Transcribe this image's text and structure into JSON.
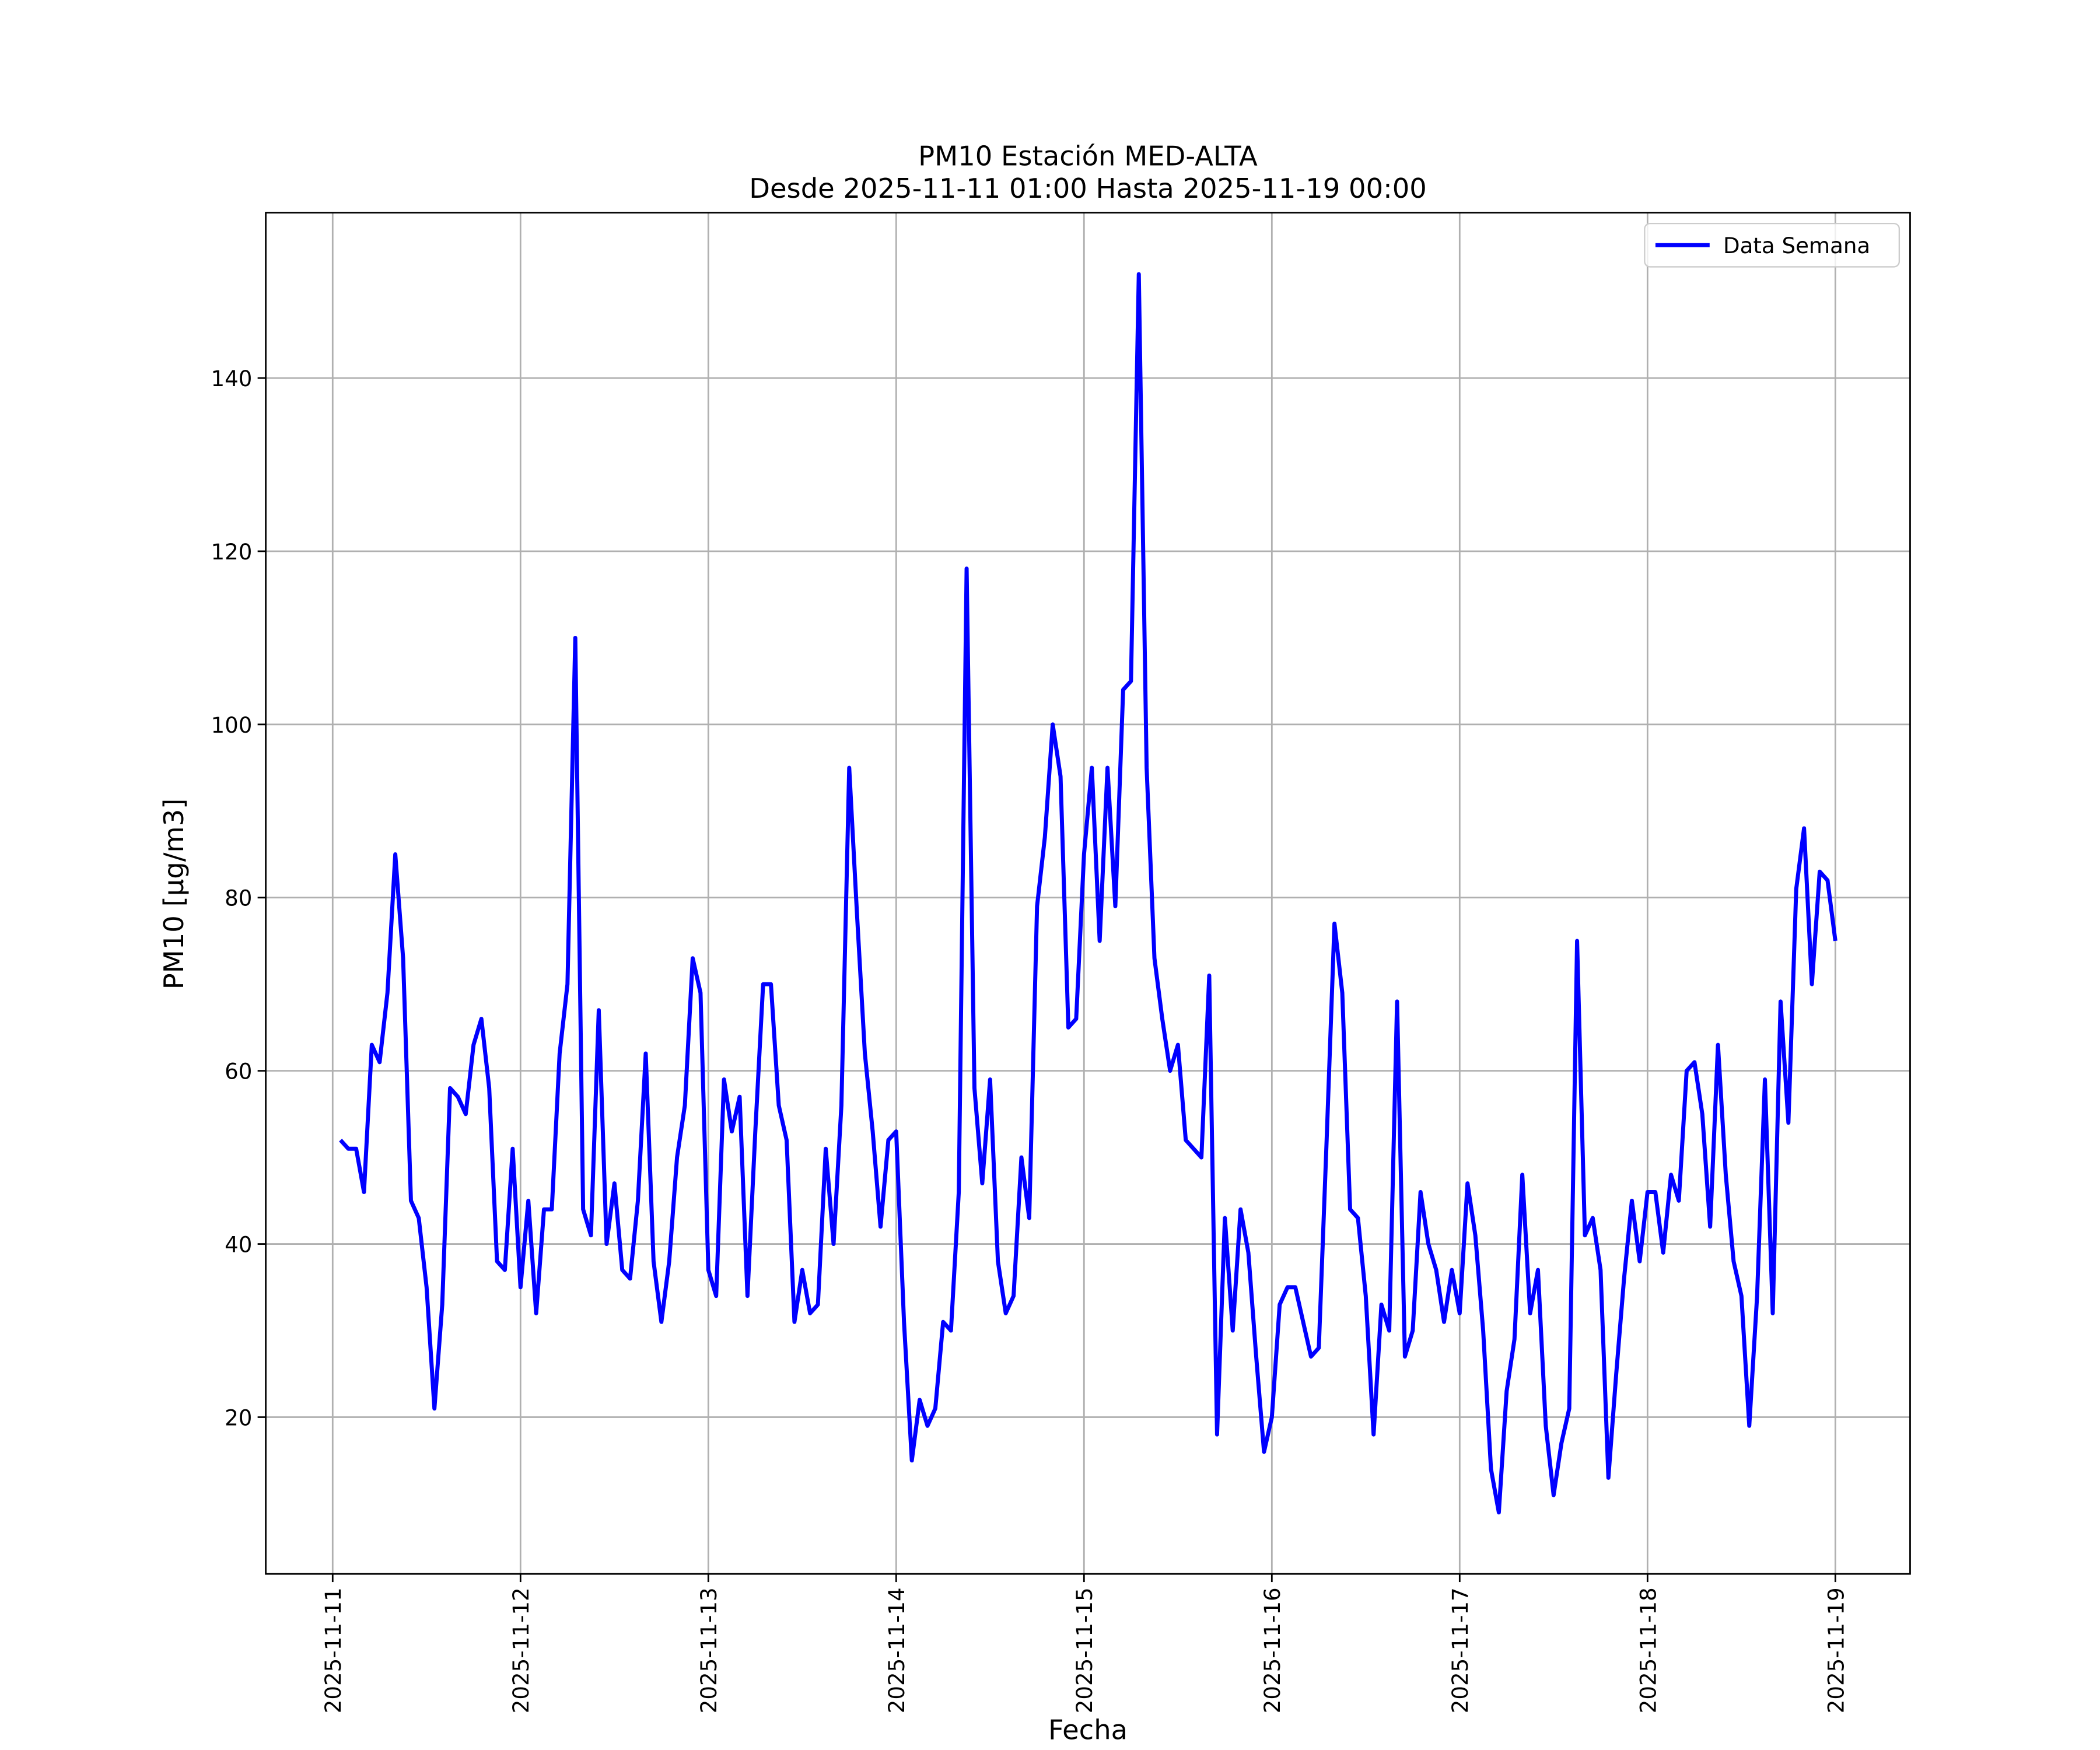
{
  "chart_data": {
    "type": "line",
    "title": "PM10 Estación MED-ALTA",
    "subtitle": "Desde 2025-11-11 01:00 Hasta 2025-11-19 00:00",
    "xlabel": "Fecha",
    "ylabel": "PM10 [μg/m3]",
    "x": [
      "2025-11-11 01:00",
      "2025-11-11 02:00",
      "2025-11-11 03:00",
      "2025-11-11 04:00",
      "2025-11-11 05:00",
      "2025-11-11 06:00",
      "2025-11-11 07:00",
      "2025-11-11 08:00",
      "2025-11-11 09:00",
      "2025-11-11 10:00",
      "2025-11-11 11:00",
      "2025-11-11 12:00",
      "2025-11-11 13:00",
      "2025-11-11 14:00",
      "2025-11-11 15:00",
      "2025-11-11 16:00",
      "2025-11-11 17:00",
      "2025-11-11 18:00",
      "2025-11-11 19:00",
      "2025-11-11 20:00",
      "2025-11-11 21:00",
      "2025-11-11 22:00",
      "2025-11-11 23:00",
      "2025-11-12 00:00",
      "2025-11-12 01:00",
      "2025-11-12 02:00",
      "2025-11-12 03:00",
      "2025-11-12 04:00",
      "2025-11-12 05:00",
      "2025-11-12 06:00",
      "2025-11-12 07:00",
      "2025-11-12 08:00",
      "2025-11-12 09:00",
      "2025-11-12 10:00",
      "2025-11-12 11:00",
      "2025-11-12 12:00",
      "2025-11-12 13:00",
      "2025-11-12 14:00",
      "2025-11-12 15:00",
      "2025-11-12 16:00",
      "2025-11-12 17:00",
      "2025-11-12 18:00",
      "2025-11-12 19:00",
      "2025-11-12 20:00",
      "2025-11-12 21:00",
      "2025-11-12 22:00",
      "2025-11-12 23:00",
      "2025-11-13 00:00",
      "2025-11-13 01:00",
      "2025-11-13 02:00",
      "2025-11-13 03:00",
      "2025-11-13 04:00",
      "2025-11-13 05:00",
      "2025-11-13 06:00",
      "2025-11-13 07:00",
      "2025-11-13 08:00",
      "2025-11-13 09:00",
      "2025-11-13 10:00",
      "2025-11-13 11:00",
      "2025-11-13 12:00",
      "2025-11-13 13:00",
      "2025-11-13 14:00",
      "2025-11-13 15:00",
      "2025-11-13 16:00",
      "2025-11-13 17:00",
      "2025-11-13 18:00",
      "2025-11-13 19:00",
      "2025-11-13 20:00",
      "2025-11-13 21:00",
      "2025-11-13 22:00",
      "2025-11-13 23:00",
      "2025-11-14 00:00",
      "2025-11-14 01:00",
      "2025-11-14 02:00",
      "2025-11-14 03:00",
      "2025-11-14 04:00",
      "2025-11-14 05:00",
      "2025-11-14 06:00",
      "2025-11-14 07:00",
      "2025-11-14 08:00",
      "2025-11-14 09:00",
      "2025-11-14 10:00",
      "2025-11-14 11:00",
      "2025-11-14 12:00",
      "2025-11-14 13:00",
      "2025-11-14 14:00",
      "2025-11-14 15:00",
      "2025-11-14 16:00",
      "2025-11-14 17:00",
      "2025-11-14 18:00",
      "2025-11-14 19:00",
      "2025-11-14 20:00",
      "2025-11-14 21:00",
      "2025-11-14 22:00",
      "2025-11-14 23:00",
      "2025-11-15 00:00",
      "2025-11-15 01:00",
      "2025-11-15 02:00",
      "2025-11-15 03:00",
      "2025-11-15 04:00",
      "2025-11-15 05:00",
      "2025-11-15 06:00",
      "2025-11-15 07:00",
      "2025-11-15 08:00",
      "2025-11-15 09:00",
      "2025-11-15 10:00",
      "2025-11-15 11:00",
      "2025-11-15 12:00",
      "2025-11-15 13:00",
      "2025-11-15 14:00",
      "2025-11-15 15:00",
      "2025-11-15 16:00",
      "2025-11-15 17:00",
      "2025-11-15 18:00",
      "2025-11-15 19:00",
      "2025-11-15 20:00",
      "2025-11-15 21:00",
      "2025-11-15 22:00",
      "2025-11-15 23:00",
      "2025-11-16 00:00",
      "2025-11-16 01:00",
      "2025-11-16 02:00",
      "2025-11-16 03:00",
      "2025-11-16 04:00",
      "2025-11-16 05:00",
      "2025-11-16 06:00",
      "2025-11-16 07:00",
      "2025-11-16 08:00",
      "2025-11-16 09:00",
      "2025-11-16 10:00",
      "2025-11-16 11:00",
      "2025-11-16 12:00",
      "2025-11-16 13:00",
      "2025-11-16 14:00",
      "2025-11-16 15:00",
      "2025-11-16 16:00",
      "2025-11-16 17:00",
      "2025-11-16 18:00",
      "2025-11-16 19:00",
      "2025-11-16 20:00",
      "2025-11-16 21:00",
      "2025-11-16 22:00",
      "2025-11-16 23:00",
      "2025-11-17 00:00",
      "2025-11-17 01:00",
      "2025-11-17 02:00",
      "2025-11-17 03:00",
      "2025-11-17 04:00",
      "2025-11-17 05:00",
      "2025-11-17 06:00",
      "2025-11-17 07:00",
      "2025-11-17 08:00",
      "2025-11-17 09:00",
      "2025-11-17 10:00",
      "2025-11-17 11:00",
      "2025-11-17 12:00",
      "2025-11-17 13:00",
      "2025-11-17 14:00",
      "2025-11-17 15:00",
      "2025-11-17 16:00",
      "2025-11-17 17:00",
      "2025-11-17 18:00",
      "2025-11-17 19:00",
      "2025-11-17 20:00",
      "2025-11-17 21:00",
      "2025-11-17 22:00",
      "2025-11-17 23:00",
      "2025-11-18 00:00",
      "2025-11-18 01:00",
      "2025-11-18 02:00",
      "2025-11-18 03:00",
      "2025-11-18 04:00",
      "2025-11-18 05:00",
      "2025-11-18 06:00",
      "2025-11-18 07:00",
      "2025-11-18 08:00",
      "2025-11-18 09:00",
      "2025-11-18 10:00",
      "2025-11-18 11:00",
      "2025-11-18 12:00",
      "2025-11-18 13:00",
      "2025-11-18 14:00",
      "2025-11-18 15:00",
      "2025-11-18 16:00",
      "2025-11-18 17:00",
      "2025-11-18 18:00",
      "2025-11-18 19:00",
      "2025-11-18 20:00",
      "2025-11-18 21:00",
      "2025-11-18 22:00",
      "2025-11-18 23:00",
      "2025-11-19 00:00"
    ],
    "series": [
      {
        "name": "Data Semana",
        "color": "#0000ff",
        "values": [
          52,
          51,
          51,
          46,
          63,
          61,
          69,
          85,
          73,
          45,
          43,
          35,
          21,
          33,
          58,
          57,
          55,
          63,
          66,
          58,
          38,
          37,
          51,
          35,
          45,
          32,
          44,
          44,
          62,
          70,
          110,
          44,
          41,
          67,
          40,
          47,
          37,
          36,
          45,
          62,
          38,
          31,
          38,
          50,
          56,
          73,
          69,
          37,
          34,
          59,
          53,
          57,
          34,
          53,
          70,
          70,
          56,
          52,
          31,
          37,
          32,
          33,
          51,
          40,
          56,
          95,
          78,
          62,
          53,
          42,
          52,
          53,
          31,
          15,
          22,
          19,
          21,
          31,
          30,
          46,
          118,
          58,
          47,
          59,
          38,
          32,
          34,
          50,
          43,
          79,
          87,
          100,
          94,
          65,
          66,
          85,
          95,
          75,
          95,
          79,
          104,
          105,
          152,
          95,
          73,
          66,
          60,
          63,
          52,
          51,
          50,
          71,
          18,
          43,
          30,
          44,
          39,
          27,
          16,
          20,
          33,
          35,
          35,
          31,
          27,
          28,
          52,
          77,
          69,
          44,
          43,
          34,
          18,
          33,
          30,
          68,
          27,
          30,
          46,
          40,
          37,
          31,
          37,
          32,
          47,
          41,
          30,
          14,
          9,
          23,
          29,
          48,
          32,
          37,
          19,
          11,
          17,
          21,
          75,
          41,
          43,
          37,
          13,
          25,
          36,
          45,
          38,
          46,
          46,
          39,
          48,
          45,
          60,
          61,
          55,
          42,
          63,
          48,
          38,
          34,
          19,
          34,
          59,
          32,
          68,
          54,
          81,
          88,
          70,
          83,
          82,
          75
        ]
      }
    ],
    "xlim": [
      "2025-11-10 15:27",
      "2025-11-19 09:33"
    ],
    "xticks": [
      "2025-11-11",
      "2025-11-12",
      "2025-11-13",
      "2025-11-14",
      "2025-11-15",
      "2025-11-16",
      "2025-11-17",
      "2025-11-18",
      "2025-11-19"
    ],
    "ylim": [
      1.9,
      159.1
    ],
    "yticks": [
      20,
      40,
      60,
      80,
      100,
      120,
      140
    ],
    "grid": true,
    "legend": "upper right"
  }
}
